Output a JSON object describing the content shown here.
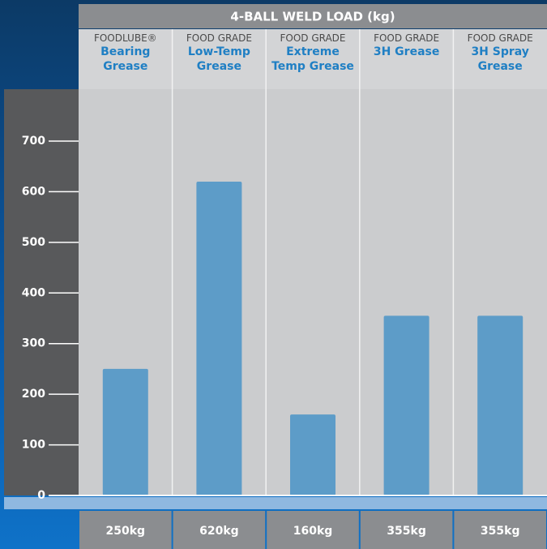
{
  "chart_data": {
    "type": "bar",
    "title": "4-BALL WELD LOAD (kg)",
    "brands": [
      "FOODLUBE®",
      "FOOD GRADE",
      "FOOD GRADE",
      "FOOD GRADE",
      "FOOD GRADE"
    ],
    "categories": [
      "Bearing Grease",
      "Low-Temp Grease",
      "Extreme Temp Grease",
      "3H Grease",
      "3H Spray Grease"
    ],
    "values": [
      250,
      620,
      160,
      355,
      355
    ],
    "value_labels": [
      "250kg",
      "620kg",
      "160kg",
      "355kg",
      "355kg"
    ],
    "color": "#5d9cc8",
    "ylim": [
      0,
      700
    ],
    "yticks": [
      0,
      100,
      200,
      300,
      400,
      500,
      600,
      700
    ]
  }
}
